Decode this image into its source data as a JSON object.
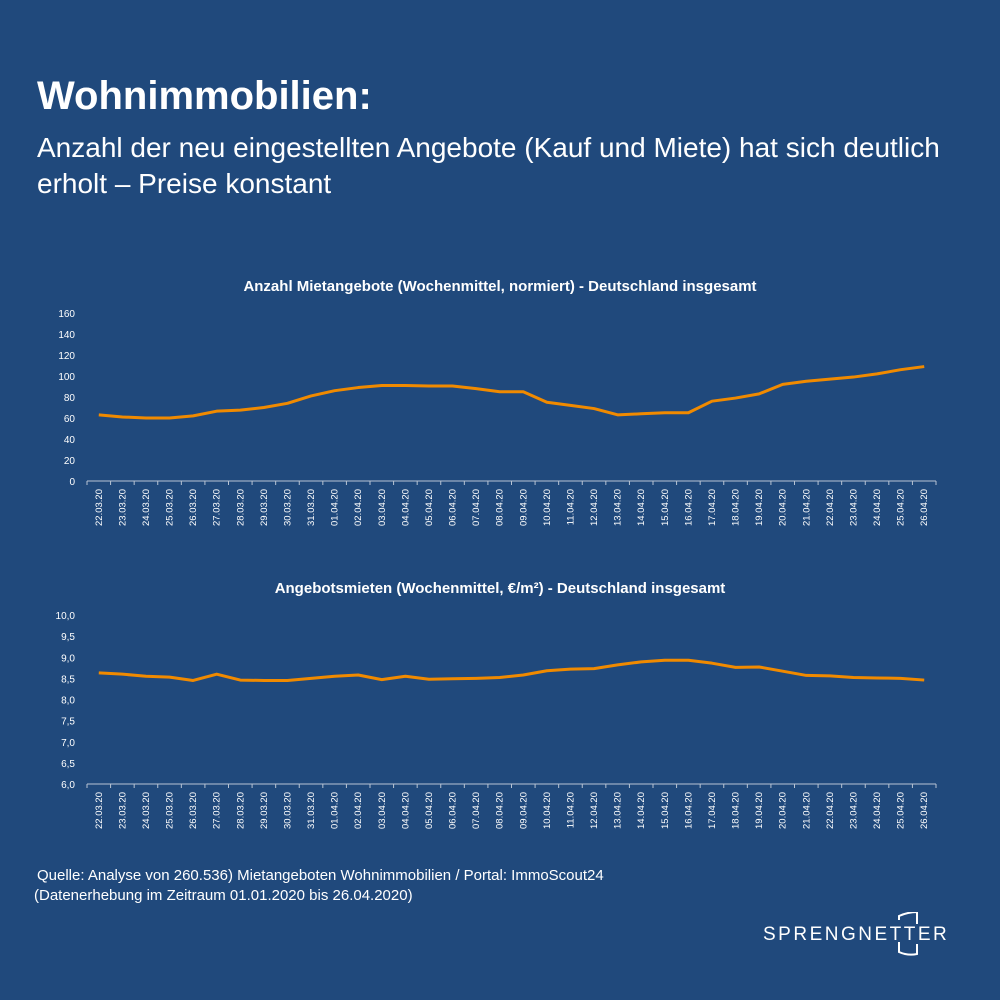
{
  "header": {
    "title": "Wohnimmobilien:",
    "subtitle": "Anzahl der neu eingestellten Angebote (Kauf und Miete) hat sich deutlich erholt – Preise konstant"
  },
  "colors": {
    "background": "#20497c",
    "line": "#f08a00",
    "text": "#ffffff"
  },
  "chart_data": [
    {
      "type": "line",
      "title": "Anzahl Mietangebote (Wochenmittel, normiert) - Deutschland insgesamt",
      "ylim": [
        0,
        160
      ],
      "yticks": [
        "0",
        "20",
        "40",
        "60",
        "80",
        "100",
        "120",
        "140",
        "160"
      ],
      "ytick_values": [
        0,
        20,
        40,
        60,
        80,
        100,
        120,
        140,
        160
      ],
      "categories": [
        "22.03.20",
        "23.03.20",
        "24.03.20",
        "25.03.20",
        "26.03.20",
        "27.03.20",
        "28.03.20",
        "29.03.20",
        "30.03.20",
        "31.03.20",
        "01.04.20",
        "02.04.20",
        "03.04.20",
        "04.04.20",
        "05.04.20",
        "06.04.20",
        "07.04.20",
        "08.04.20",
        "09.04.20",
        "10.04.20",
        "11.04.20",
        "12.04.20",
        "13.04.20",
        "14.04.20",
        "15.04.20",
        "16.04.20",
        "17.04.20",
        "18.04.20",
        "19.04.20",
        "20.04.20",
        "21.04.20",
        "22.04.20",
        "23.04.20",
        "24.04.20",
        "25.04.20",
        "26.04.20"
      ],
      "values": [
        63,
        61,
        60,
        60,
        62,
        66.5,
        67.5,
        70,
        74,
        81,
        86,
        89,
        91,
        91,
        90.5,
        90.5,
        88,
        85,
        85,
        75,
        72,
        69,
        63,
        64,
        65,
        65,
        76,
        79,
        83,
        92,
        95,
        97,
        99,
        102,
        106,
        109
      ]
    },
    {
      "type": "line",
      "title": "Angebotsmieten (Wochenmittel, €/m²) - Deutschland insgesamt",
      "ylim": [
        6,
        10
      ],
      "yticks": [
        "6,0",
        "6,5",
        "7,0",
        "7,5",
        "8,0",
        "8,5",
        "9,0",
        "9,5",
        "10,0"
      ],
      "ytick_values": [
        6,
        6.5,
        7,
        7.5,
        8,
        8.5,
        9,
        9.5,
        10
      ],
      "categories": [
        "22.03.20",
        "23.03.20",
        "24.03.20",
        "25.03.20",
        "26.03.20",
        "27.03.20",
        "28.03.20",
        "29.03.20",
        "30.03.20",
        "31.03.20",
        "01.04.20",
        "02.04.20",
        "03.04.20",
        "04.04.20",
        "05.04.20",
        "06.04.20",
        "07.04.20",
        "08.04.20",
        "09.04.20",
        "10.04.20",
        "11.04.20",
        "12.04.20",
        "13.04.20",
        "14.04.20",
        "15.04.20",
        "16.04.20",
        "17.04.20",
        "18.04.20",
        "19.04.20",
        "20.04.20",
        "21.04.20",
        "22.04.20",
        "23.04.20",
        "24.04.20",
        "25.04.20",
        "26.04.20"
      ],
      "values": [
        8.63,
        8.6,
        8.55,
        8.53,
        8.45,
        8.6,
        8.46,
        8.45,
        8.45,
        8.5,
        8.55,
        8.58,
        8.47,
        8.55,
        8.48,
        8.49,
        8.5,
        8.52,
        8.58,
        8.68,
        8.72,
        8.73,
        8.82,
        8.89,
        8.93,
        8.93,
        8.86,
        8.76,
        8.77,
        8.67,
        8.57,
        8.56,
        8.52,
        8.51,
        8.5,
        8.46
      ]
    }
  ],
  "footer": {
    "source_line1": "Quelle: Analyse von 260.536) Mietangeboten Wohnimmobilien / Portal: ImmoScout24",
    "source_line2": "(Datenerhebung im Zeitraum 01.01.2020 bis 26.04.2020)",
    "logo": "SPRENGNETTER"
  }
}
